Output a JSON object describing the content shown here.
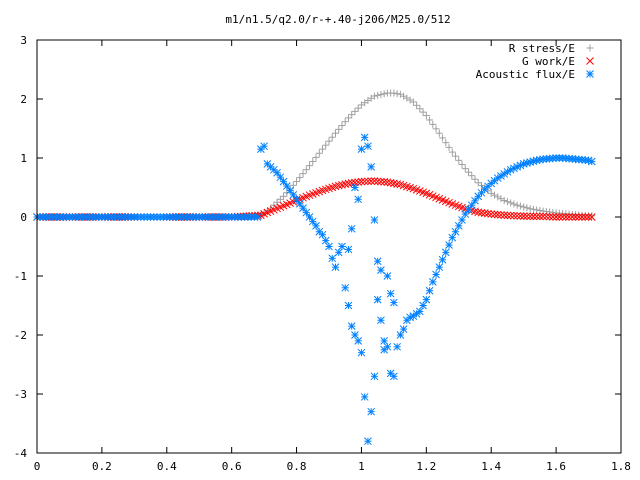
{
  "chart_data": {
    "type": "scatter",
    "title": "m1/n1.5/q2.0/r-+.40-j206/M25.0/512",
    "xlabel": "",
    "ylabel": "",
    "xlim": [
      0,
      1.8
    ],
    "ylim": [
      -4,
      3
    ],
    "x_ticks": [
      "0",
      "0.2",
      "0.4",
      "0.6",
      "0.8",
      "1",
      "1.2",
      "1.4",
      "1.6",
      "1.8"
    ],
    "y_ticks": [
      "3",
      "2",
      "1",
      "0",
      "-1",
      "-2",
      "-3",
      "-4"
    ],
    "grid": false,
    "legend_placement": "top-right",
    "series": [
      {
        "name": "R stress/E",
        "marker": "+",
        "color": "#a0a0a0",
        "x": [
          0.0,
          0.1,
          0.2,
          0.3,
          0.4,
          0.5,
          0.6,
          0.69,
          0.72,
          0.76,
          0.8,
          0.84,
          0.88,
          0.92,
          0.96,
          1.0,
          1.04,
          1.08,
          1.1,
          1.12,
          1.16,
          1.2,
          1.24,
          1.28,
          1.32,
          1.36,
          1.4,
          1.44,
          1.48,
          1.52,
          1.56,
          1.6,
          1.64,
          1.68,
          1.71
        ],
        "y": [
          0,
          0,
          0,
          0,
          0,
          0,
          0,
          0.02,
          0.15,
          0.35,
          0.6,
          0.87,
          1.15,
          1.42,
          1.68,
          1.9,
          2.05,
          2.1,
          2.1,
          2.08,
          1.95,
          1.72,
          1.42,
          1.1,
          0.82,
          0.58,
          0.4,
          0.28,
          0.2,
          0.14,
          0.1,
          0.07,
          0.05,
          0.03,
          0.02
        ]
      },
      {
        "name": "G work/E",
        "marker": "×",
        "color": "#ff0000",
        "x": [
          0.0,
          0.1,
          0.2,
          0.3,
          0.4,
          0.5,
          0.6,
          0.69,
          0.72,
          0.76,
          0.8,
          0.84,
          0.88,
          0.92,
          0.96,
          1.0,
          1.04,
          1.08,
          1.12,
          1.16,
          1.2,
          1.24,
          1.28,
          1.32,
          1.36,
          1.4,
          1.44,
          1.48,
          1.52,
          1.56,
          1.6,
          1.64,
          1.68,
          1.71
        ],
        "y": [
          0,
          0,
          0,
          0,
          0,
          0,
          0,
          0.03,
          0.1,
          0.19,
          0.28,
          0.37,
          0.45,
          0.52,
          0.57,
          0.6,
          0.61,
          0.59,
          0.55,
          0.48,
          0.4,
          0.31,
          0.22,
          0.14,
          0.08,
          0.05,
          0.03,
          0.02,
          0.01,
          0.01,
          0.0,
          0.0,
          0.0,
          0.0
        ]
      },
      {
        "name": "Acoustic flux/E",
        "marker": "*",
        "color": "#0080ff",
        "x": [
          0.0,
          0.05,
          0.1,
          0.15,
          0.2,
          0.25,
          0.3,
          0.35,
          0.4,
          0.45,
          0.5,
          0.55,
          0.6,
          0.65,
          0.68,
          0.69,
          0.7,
          0.71,
          0.72,
          0.74,
          0.76,
          0.78,
          0.8,
          0.82,
          0.84,
          0.86,
          0.87,
          0.88,
          0.89,
          0.9,
          0.91,
          0.92,
          0.93,
          0.94,
          0.95,
          0.96,
          0.96,
          0.97,
          0.97,
          0.98,
          0.98,
          0.99,
          0.99,
          1.0,
          1.0,
          1.01,
          1.01,
          1.02,
          1.02,
          1.03,
          1.03,
          1.04,
          1.04,
          1.05,
          1.05,
          1.06,
          1.06,
          1.07,
          1.07,
          1.08,
          1.08,
          1.09,
          1.09,
          1.1,
          1.1,
          1.11,
          1.12,
          1.13,
          1.14,
          1.15,
          1.16,
          1.18,
          1.2,
          1.22,
          1.24,
          1.26,
          1.28,
          1.3,
          1.32,
          1.34,
          1.36,
          1.38,
          1.4,
          1.42,
          1.44,
          1.46,
          1.48,
          1.5,
          1.52,
          1.54,
          1.56,
          1.58,
          1.6,
          1.62,
          1.64,
          1.66,
          1.68,
          1.7,
          1.71
        ],
        "y": [
          0,
          0,
          0,
          0,
          0,
          0,
          0,
          0,
          0,
          0,
          0,
          0,
          0,
          0,
          0,
          1.15,
          1.2,
          0.9,
          0.85,
          0.75,
          0.6,
          0.45,
          0.3,
          0.15,
          0.0,
          -0.15,
          -0.25,
          -0.3,
          -0.4,
          -0.5,
          -0.7,
          -0.85,
          -0.6,
          -0.5,
          -1.2,
          -1.5,
          -0.55,
          -1.85,
          -0.2,
          -2.0,
          0.5,
          -2.1,
          0.3,
          -2.3,
          1.15,
          -3.05,
          1.35,
          -3.8,
          1.2,
          -3.3,
          0.85,
          -2.7,
          -0.05,
          -0.75,
          -1.4,
          -0.9,
          -1.75,
          -2.1,
          -2.25,
          -1.0,
          -2.2,
          -2.65,
          -1.3,
          -2.7,
          -1.45,
          -2.2,
          -2.0,
          -1.9,
          -1.75,
          -1.7,
          -1.68,
          -1.6,
          -1.4,
          -1.1,
          -0.85,
          -0.6,
          -0.35,
          -0.15,
          0.05,
          0.2,
          0.35,
          0.47,
          0.57,
          0.66,
          0.73,
          0.8,
          0.85,
          0.9,
          0.93,
          0.96,
          0.98,
          0.99,
          1.0,
          1.0,
          0.99,
          0.98,
          0.97,
          0.96,
          0.94
        ]
      }
    ]
  }
}
